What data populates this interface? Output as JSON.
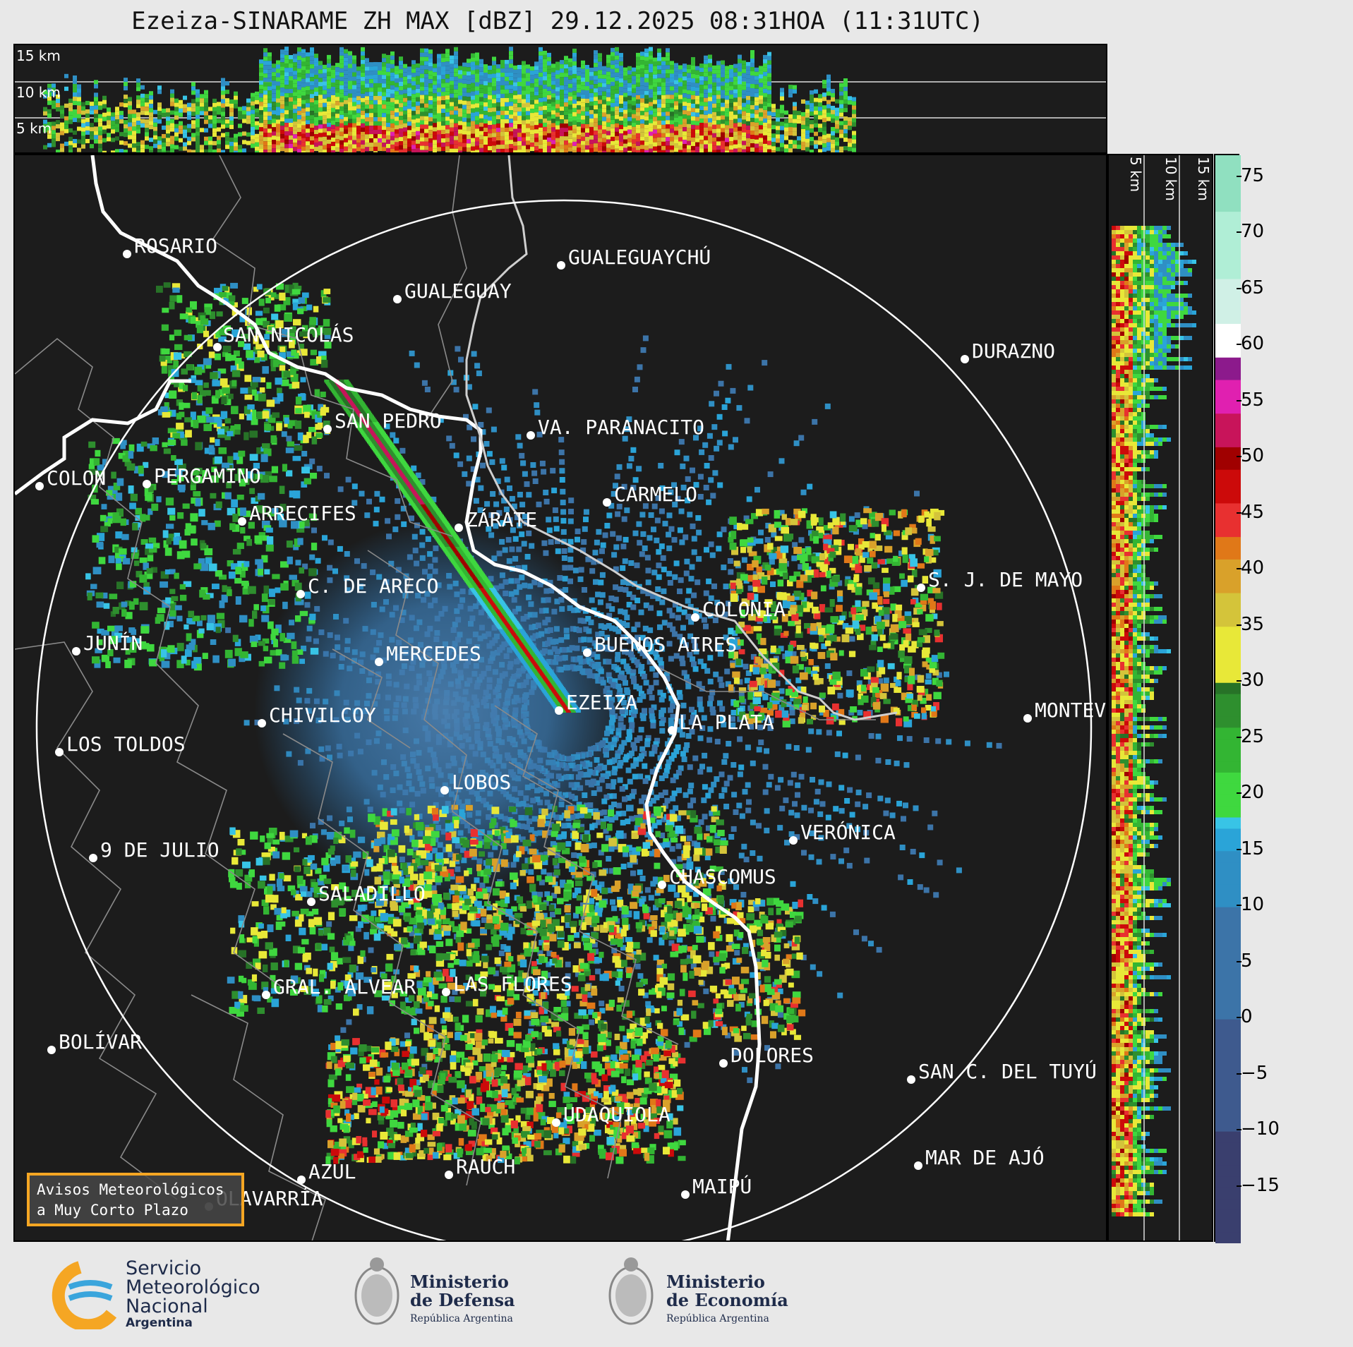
{
  "title": "Ezeiza-SINARAME ZH MAX [dBZ] 29.12.2025 08:31HOA (11:31UTC)",
  "top_panel": {
    "height_labels": [
      "15 km",
      "10 km",
      "5 km"
    ]
  },
  "side_panel": {
    "height_labels": [
      "5 km",
      "10 km",
      "15 km"
    ]
  },
  "colorbar": {
    "ticks": [
      "75",
      "70",
      "65",
      "60",
      "55",
      "50",
      "45",
      "40",
      "35",
      "30",
      "25",
      "20",
      "15",
      "10",
      "5",
      "0",
      "−5",
      "−10",
      "−15"
    ],
    "range": [
      -20,
      77
    ]
  },
  "cities": [
    {
      "name": "ROSARIO"
    },
    {
      "name": "GUALEGUAYCHÚ"
    },
    {
      "name": "GUALEGUAY"
    },
    {
      "name": "SAN NICOLÁS"
    },
    {
      "name": "DURAZNO"
    },
    {
      "name": "SAN PEDRO"
    },
    {
      "name": "VA. PARANACITO"
    },
    {
      "name": "COLON"
    },
    {
      "name": "PERGAMINO"
    },
    {
      "name": "CARMELO"
    },
    {
      "name": "ARRECIFES"
    },
    {
      "name": "ZÁRATE"
    },
    {
      "name": "S. J. DE MAYO"
    },
    {
      "name": "C. DE ARECO"
    },
    {
      "name": "COLONIA"
    },
    {
      "name": "JUNÍN"
    },
    {
      "name": "BUENOS AIRES"
    },
    {
      "name": "MERCEDES"
    },
    {
      "name": "EZEIZA"
    },
    {
      "name": "MONTEVIDEO"
    },
    {
      "name": "CHIVILCOY"
    },
    {
      "name": "LA PLATA"
    },
    {
      "name": "LOS TOLDOS"
    },
    {
      "name": "LOBOS"
    },
    {
      "name": "VERÓNICA"
    },
    {
      "name": "9 DE JULIO"
    },
    {
      "name": "CHASCOMUS"
    },
    {
      "name": "SALADILLO"
    },
    {
      "name": "GRAL. ALVEAR"
    },
    {
      "name": "LAS FLORES"
    },
    {
      "name": "BOLÍVAR"
    },
    {
      "name": "DOLORES"
    },
    {
      "name": "SAN C. DEL TUYÚ"
    },
    {
      "name": "UDAQUIOLA"
    },
    {
      "name": "AZUL"
    },
    {
      "name": "RAUCH"
    },
    {
      "name": "MAR DE AJÓ"
    },
    {
      "name": "OLAVARRÍA"
    },
    {
      "name": "MAIPÚ"
    }
  ],
  "aviso": {
    "line1": "Avisos Meteorológicos",
    "line2": "a Muy Corto Plazo"
  },
  "logos": {
    "smn": {
      "line1": "Servicio",
      "line2": "Meteorológico",
      "line3": "Nacional",
      "line4": "Argentina"
    },
    "defensa": {
      "line1": "Ministerio",
      "line2": "de Defensa",
      "line3": "República Argentina"
    },
    "economia": {
      "line1": "Ministerio",
      "line2": "de Economía",
      "line3": "República Argentina"
    }
  },
  "colors": {
    "background": "#1c1c1c",
    "range_ring": "#ffffff",
    "aviso_border": "#f5a623"
  }
}
